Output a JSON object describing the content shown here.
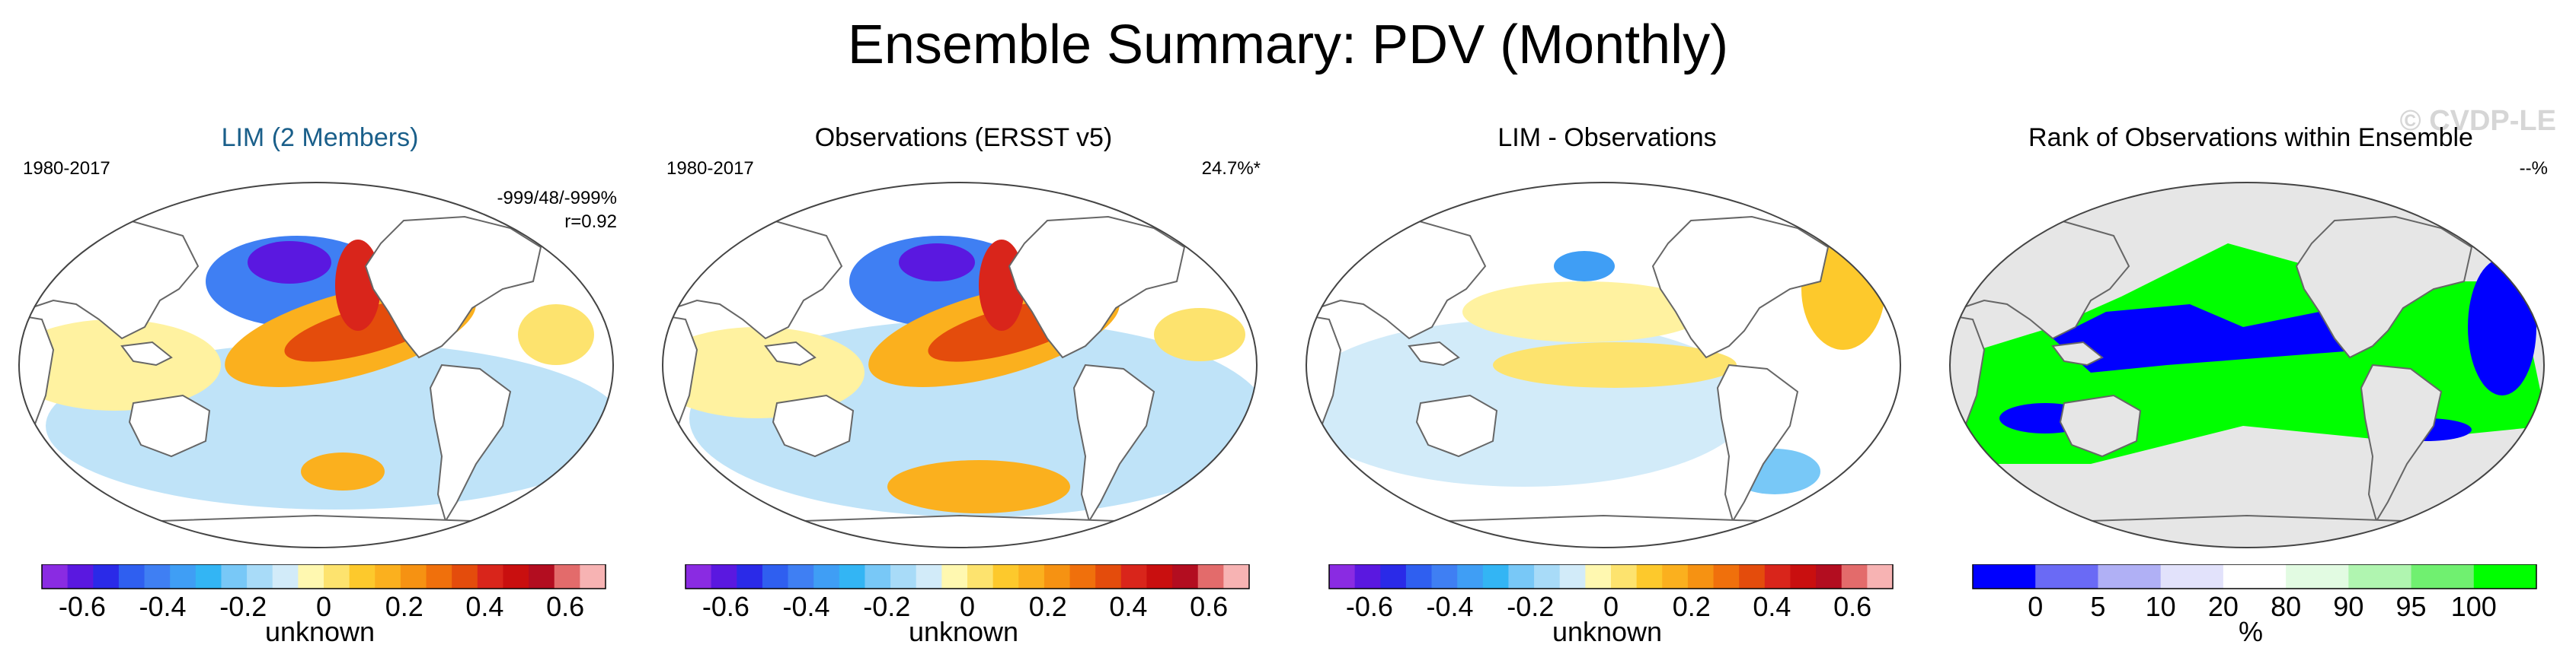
{
  "title": "Ensemble Summary: PDV (Monthly)",
  "watermark": "© CVDP-LE",
  "colors": {
    "ocean_line": "#555555",
    "rank_blue": "#0000ff",
    "rank_green": "#00ff00",
    "rank_grey": "#e6e6e6"
  },
  "diverging_palette": [
    "#8a2be2",
    "#5a18e0",
    "#2a2ae8",
    "#2f5ff0",
    "#3f7ff3",
    "#3f9ef5",
    "#33b5f4",
    "#78c8f7",
    "#a8dbf8",
    "#d2ebf9",
    "#fff8b0",
    "#fde36e",
    "#fdc92c",
    "#fbb01e",
    "#f69212",
    "#f0700c",
    "#e44c0c",
    "#d9251b",
    "#c90f0f",
    "#b30d20",
    "#e36b6b",
    "#f7b3b3"
  ],
  "rank_palette": [
    "#0000ff",
    "#6a6af5",
    "#b0b0f5",
    "#e2e2fb",
    "#ffffff",
    "#e2fbe2",
    "#b0f5b0",
    "#70f070",
    "#00ff00"
  ],
  "panels": [
    {
      "title": "LIM (2 Members)",
      "period": "1980-2017",
      "stat_line1": "-999/48/-999%",
      "stat_line2": "r=0.92",
      "colorbar_title": "unknown",
      "ticks": [
        "-0.6",
        "-0.4",
        "-0.2",
        "0",
        "0.2",
        "0.4",
        "0.6"
      ]
    },
    {
      "title": "Observations (ERSST v5)",
      "period": "1980-2017",
      "variance": "24.7%*",
      "colorbar_title": "unknown",
      "ticks": [
        "-0.6",
        "-0.4",
        "-0.2",
        "0",
        "0.2",
        "0.4",
        "0.6"
      ]
    },
    {
      "title": "LIM - Observations",
      "colorbar_title": "unknown",
      "ticks": [
        "-0.6",
        "-0.4",
        "-0.2",
        "0",
        "0.2",
        "0.4",
        "0.6"
      ]
    },
    {
      "title": "Rank of Observations within Ensemble",
      "pct": "--%",
      "colorbar_title": "%",
      "rank_ticks": [
        "0",
        "5",
        "10",
        "20",
        "80",
        "90",
        "95",
        "100"
      ]
    }
  ]
}
